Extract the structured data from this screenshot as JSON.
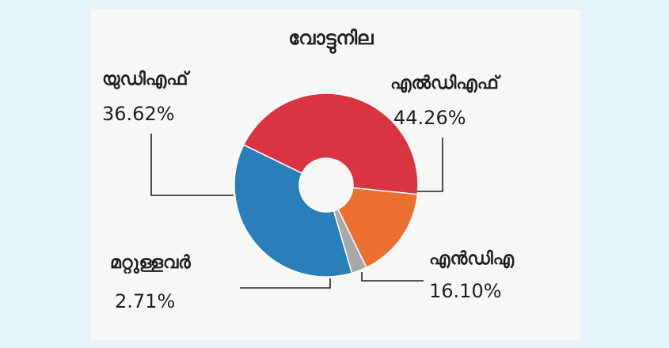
{
  "colors": {
    "background": "#e6f2fa",
    "card": "#f7f7f5",
    "leader_line": "#1f1f1f"
  },
  "chart_data": {
    "type": "pie",
    "donut": true,
    "title": "വോട്ടുനില",
    "slices": [
      {
        "label": "എൽഡിഎഫ്",
        "value": 44.26,
        "display": "44.26%",
        "color": "#d9343f"
      },
      {
        "label": "എൻഡിഎ",
        "value": 16.1,
        "display": "16.10%",
        "color": "#ea6f30"
      },
      {
        "label": "മറ്റുള്ളവർ",
        "value": 2.71,
        "display": "2.71%",
        "color": "#a8a8a8"
      },
      {
        "label": "യുഡിഎഫ്",
        "value": 36.62,
        "display": "36.62%",
        "color": "#2a7fba"
      }
    ],
    "legend": "none"
  }
}
